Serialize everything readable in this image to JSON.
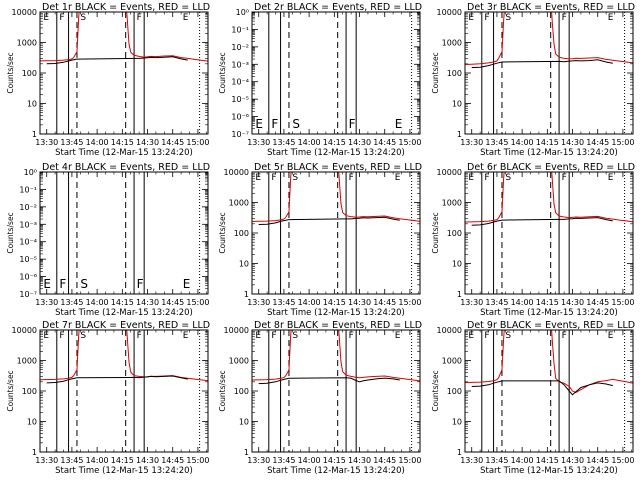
{
  "figure": {
    "xlabel": "Start Time (12-Mar-15 13:24:20)",
    "ylabel": "Counts/sec"
  },
  "chart_data": [
    {
      "type": "line",
      "title": "Det 1r BLACK = Events, RED = LLD",
      "panel": "1r",
      "empty": false,
      "ylim": [
        1,
        10000
      ],
      "yscale": "log",
      "yticks": [
        "1",
        "10",
        "100",
        "1000",
        "10000"
      ],
      "xticks": [
        "13:30",
        "13:45",
        "14:00",
        "14:15",
        "14:30",
        "14:45",
        "15:00"
      ],
      "xrange_min": [
        -4,
        96
      ],
      "solid_lines_min": [
        6,
        13,
        52,
        58
      ],
      "dashed_lines_min": [
        18,
        47
      ],
      "dotted_lines_min": [
        91
      ],
      "markers": [
        "E",
        "F",
        "S",
        "F",
        "E"
      ],
      "series": [
        {
          "name": "RED",
          "x": [
            -4,
            0,
            5,
            10,
            13,
            15,
            16,
            18,
            19,
            20,
            47,
            48,
            49,
            50,
            52,
            55,
            58,
            60,
            62,
            65,
            70,
            75,
            80,
            84,
            88,
            92,
            96
          ],
          "y": [
            250,
            252,
            255,
            265,
            275,
            290,
            320,
            500,
            6000,
            30000,
            30000,
            5000,
            900,
            480,
            380,
            350,
            330,
            340,
            350,
            345,
            360,
            370,
            320,
            300,
            280,
            260,
            245
          ]
        },
        {
          "name": "BLACK",
          "x": [
            0,
            5,
            10,
            13,
            15,
            18,
            52,
            55,
            58,
            60,
            62,
            65,
            70,
            75,
            80,
            84
          ],
          "y": [
            200,
            205,
            225,
            250,
            265,
            285,
            300,
            300,
            310,
            315,
            325,
            320,
            330,
            340,
            290,
            265
          ]
        }
      ]
    },
    {
      "type": "line",
      "title": "Det 2r BLACK = Events, RED = LLD",
      "panel": "2r",
      "empty": true,
      "ylim": [
        1e-07,
        1
      ],
      "yscale": "log",
      "yticks": [
        "10⁻⁷",
        "10⁻⁶",
        "10⁻⁵",
        "10⁻⁴",
        "10⁻³",
        "10⁻²",
        "10⁻¹",
        "10⁰"
      ],
      "xticks": [
        "13:30",
        "13:45",
        "14:00",
        "14:15",
        "14:30",
        "14:45",
        "15:00"
      ],
      "xrange_min": [
        -4,
        96
      ],
      "solid_lines_min": [
        6,
        13,
        52,
        58
      ],
      "dashed_lines_min": [
        18,
        47
      ],
      "dotted_lines_min": [
        91
      ],
      "markers": [
        "E",
        "F",
        "S",
        "F",
        "E"
      ],
      "series": []
    },
    {
      "type": "line",
      "title": "Det 3r BLACK = Events, RED = LLD",
      "panel": "3r",
      "empty": false,
      "ylim": [
        1,
        10000
      ],
      "yscale": "log",
      "yticks": [
        "1",
        "10",
        "100",
        "1000",
        "10000"
      ],
      "xticks": [
        "13:30",
        "13:45",
        "14:00",
        "14:15",
        "14:30",
        "14:45",
        "15:00"
      ],
      "xrange_min": [
        -4,
        96
      ],
      "solid_lines_min": [
        6,
        13,
        52,
        58
      ],
      "dashed_lines_min": [
        18,
        47
      ],
      "dotted_lines_min": [
        91
      ],
      "markers": [
        "E",
        "F",
        "S",
        "F",
        "E"
      ],
      "series": [
        {
          "name": "RED",
          "x": [
            -4,
            0,
            5,
            10,
            13,
            15,
            16,
            18,
            19,
            20,
            47,
            48,
            49,
            50,
            52,
            55,
            58,
            60,
            62,
            65,
            70,
            75,
            80,
            84,
            88,
            92,
            96
          ],
          "y": [
            190,
            195,
            200,
            215,
            230,
            250,
            300,
            500,
            5000,
            30000,
            30000,
            4000,
            900,
            420,
            330,
            300,
            290,
            295,
            305,
            300,
            310,
            320,
            280,
            260,
            245,
            230,
            215
          ]
        },
        {
          "name": "BLACK",
          "x": [
            0,
            5,
            10,
            13,
            15,
            18,
            52,
            55,
            58,
            60,
            62,
            65,
            70,
            75,
            80,
            84
          ],
          "y": [
            150,
            155,
            175,
            195,
            210,
            230,
            240,
            235,
            245,
            250,
            255,
            250,
            255,
            270,
            230,
            210
          ]
        }
      ]
    },
    {
      "type": "line",
      "title": "Det 4r BLACK = Events, RED = LLD",
      "panel": "4r",
      "empty": true,
      "ylim": [
        1e-07,
        1
      ],
      "yscale": "log",
      "yticks": [
        "10⁻⁷",
        "10⁻⁶",
        "10⁻⁵",
        "10⁻⁴",
        "10⁻³",
        "10⁻²",
        "10⁻¹",
        "10⁰"
      ],
      "xticks": [
        "13:30",
        "13:45",
        "14:00",
        "14:15",
        "14:30",
        "14:45",
        "15:00"
      ],
      "xrange_min": [
        -4,
        96
      ],
      "solid_lines_min": [
        6,
        13,
        52,
        58
      ],
      "dashed_lines_min": [
        18,
        47
      ],
      "dotted_lines_min": [
        91
      ],
      "markers": [
        "E",
        "F",
        "S",
        "F",
        "E"
      ],
      "series": []
    },
    {
      "type": "line",
      "title": "Det 5r BLACK = Events, RED = LLD",
      "panel": "5r",
      "empty": false,
      "ylim": [
        1,
        10000
      ],
      "yscale": "log",
      "yticks": [
        "1",
        "10",
        "100",
        "1000",
        "10000"
      ],
      "xticks": [
        "13:30",
        "13:45",
        "14:00",
        "14:15",
        "14:30",
        "14:45",
        "15:00"
      ],
      "xrange_min": [
        -4,
        96
      ],
      "solid_lines_min": [
        6,
        13,
        52,
        58
      ],
      "dashed_lines_min": [
        18,
        47
      ],
      "dotted_lines_min": [
        91
      ],
      "markers": [
        "E",
        "F",
        "S",
        "F",
        "E"
      ],
      "series": [
        {
          "name": "RED",
          "x": [
            -4,
            0,
            5,
            10,
            13,
            15,
            16,
            18,
            19,
            20,
            47,
            48,
            49,
            50,
            52,
            55,
            58,
            60,
            62,
            65,
            70,
            75,
            80,
            84,
            88,
            92,
            96
          ],
          "y": [
            240,
            242,
            246,
            255,
            268,
            285,
            320,
            500,
            6000,
            30000,
            30000,
            5000,
            900,
            470,
            370,
            345,
            330,
            335,
            345,
            340,
            350,
            360,
            315,
            295,
            275,
            258,
            240
          ]
        },
        {
          "name": "BLACK",
          "x": [
            0,
            5,
            10,
            13,
            15,
            18,
            52,
            55,
            58,
            60,
            62,
            65,
            70,
            75,
            80,
            84
          ],
          "y": [
            190,
            195,
            215,
            240,
            255,
            275,
            290,
            290,
            300,
            305,
            315,
            310,
            320,
            330,
            285,
            260
          ]
        }
      ]
    },
    {
      "type": "line",
      "title": "Det 6r BLACK = Events, RED = LLD",
      "panel": "6r",
      "empty": false,
      "ylim": [
        1,
        10000
      ],
      "yscale": "log",
      "yticks": [
        "1",
        "10",
        "100",
        "1000",
        "10000"
      ],
      "xticks": [
        "13:30",
        "13:45",
        "14:00",
        "14:15",
        "14:30",
        "14:45",
        "15:00"
      ],
      "xrange_min": [
        -4,
        96
      ],
      "solid_lines_min": [
        6,
        13,
        52,
        58
      ],
      "dashed_lines_min": [
        18,
        47
      ],
      "dotted_lines_min": [
        91
      ],
      "markers": [
        "E",
        "F",
        "S",
        "F",
        "E"
      ],
      "series": [
        {
          "name": "RED",
          "x": [
            -4,
            0,
            5,
            10,
            13,
            15,
            16,
            18,
            19,
            20,
            47,
            48,
            49,
            50,
            52,
            55,
            58,
            60,
            62,
            65,
            70,
            75,
            80,
            84,
            88,
            92,
            96
          ],
          "y": [
            230,
            232,
            236,
            245,
            258,
            275,
            310,
            500,
            6000,
            30000,
            30000,
            5000,
            900,
            460,
            360,
            335,
            320,
            325,
            335,
            330,
            340,
            350,
            305,
            285,
            265,
            250,
            232
          ]
        },
        {
          "name": "BLACK",
          "x": [
            0,
            5,
            10,
            13,
            15,
            18,
            52,
            55,
            58,
            60,
            62,
            65,
            70,
            75,
            80,
            84
          ],
          "y": [
            180,
            185,
            205,
            230,
            245,
            265,
            280,
            280,
            290,
            295,
            305,
            300,
            310,
            320,
            275,
            250
          ]
        }
      ]
    },
    {
      "type": "line",
      "title": "Det 7r BLACK = Events, RED = LLD",
      "panel": "7r",
      "empty": false,
      "ylim": [
        1,
        10000
      ],
      "yscale": "log",
      "yticks": [
        "1",
        "10",
        "100",
        "1000",
        "10000"
      ],
      "xticks": [
        "13:30",
        "13:45",
        "14:00",
        "14:15",
        "14:30",
        "14:45",
        "15:00"
      ],
      "xrange_min": [
        -4,
        96
      ],
      "solid_lines_min": [
        6,
        13,
        52,
        58
      ],
      "dashed_lines_min": [
        18,
        47
      ],
      "dotted_lines_min": [
        91
      ],
      "markers": [
        "E",
        "F",
        "S",
        "F",
        "E"
      ],
      "series": [
        {
          "name": "RED",
          "x": [
            -4,
            0,
            5,
            10,
            13,
            15,
            16,
            18,
            19,
            20,
            47,
            48,
            49,
            50,
            52,
            55,
            58,
            60,
            62,
            65,
            70,
            75,
            80,
            84,
            88,
            92,
            96
          ],
          "y": [
            235,
            237,
            240,
            250,
            262,
            280,
            315,
            500,
            6000,
            30000,
            30000,
            5000,
            900,
            420,
            320,
            300,
            290,
            295,
            305,
            300,
            310,
            320,
            280,
            262,
            245,
            232,
            218
          ]
        },
        {
          "name": "BLACK",
          "x": [
            0,
            5,
            10,
            13,
            15,
            18,
            52,
            55,
            58,
            60,
            62,
            65,
            70,
            75,
            80,
            84
          ],
          "y": [
            185,
            190,
            210,
            235,
            250,
            270,
            280,
            275,
            285,
            290,
            300,
            295,
            300,
            310,
            270,
            245
          ]
        }
      ]
    },
    {
      "type": "line",
      "title": "Det 8r BLACK = Events, RED = LLD",
      "panel": "8r",
      "empty": false,
      "ylim": [
        1,
        10000
      ],
      "yscale": "log",
      "yticks": [
        "1",
        "10",
        "100",
        "1000",
        "10000"
      ],
      "xticks": [
        "13:30",
        "13:45",
        "14:00",
        "14:15",
        "14:30",
        "14:45",
        "15:00"
      ],
      "xrange_min": [
        -4,
        96
      ],
      "solid_lines_min": [
        6,
        13,
        52,
        58
      ],
      "dashed_lines_min": [
        18,
        47
      ],
      "dotted_lines_min": [
        91
      ],
      "markers": [
        "E",
        "F",
        "S",
        "F",
        "E"
      ],
      "series": [
        {
          "name": "RED",
          "x": [
            -4,
            0,
            5,
            10,
            13,
            15,
            16,
            18,
            19,
            20,
            47,
            48,
            49,
            50,
            52,
            55,
            58,
            60,
            62,
            65,
            70,
            75,
            80,
            84,
            88,
            92,
            96
          ],
          "y": [
            230,
            232,
            236,
            245,
            258,
            275,
            310,
            500,
            6000,
            30000,
            30000,
            5000,
            900,
            430,
            330,
            300,
            280,
            270,
            280,
            290,
            300,
            310,
            280,
            262,
            245,
            230,
            215
          ]
        },
        {
          "name": "BLACK",
          "x": [
            0,
            5,
            10,
            13,
            15,
            18,
            52,
            55,
            58,
            60,
            62,
            65,
            70,
            75,
            80,
            84
          ],
          "y": [
            175,
            180,
            200,
            225,
            240,
            260,
            270,
            260,
            220,
            200,
            215,
            230,
            250,
            265,
            250,
            230
          ]
        }
      ]
    },
    {
      "type": "line",
      "title": "Det 9r BLACK = Events, RED = LLD",
      "panel": "9r",
      "empty": false,
      "ylim": [
        1,
        10000
      ],
      "yscale": "log",
      "yticks": [
        "1",
        "10",
        "100",
        "1000",
        "10000"
      ],
      "xticks": [
        "13:30",
        "13:45",
        "14:00",
        "14:15",
        "14:30",
        "14:45",
        "15:00"
      ],
      "xrange_min": [
        -4,
        96
      ],
      "solid_lines_min": [
        6,
        13,
        52,
        58
      ],
      "dashed_lines_min": [
        18,
        47
      ],
      "dotted_lines_min": [
        91
      ],
      "markers": [
        "E",
        "F",
        "S",
        "F",
        "E"
      ],
      "series": [
        {
          "name": "RED",
          "x": [
            -4,
            0,
            5,
            10,
            13,
            15,
            16,
            18,
            19,
            20,
            47,
            48,
            49,
            50,
            52,
            55,
            58,
            60,
            62,
            65,
            70,
            75,
            80,
            84,
            88,
            92,
            96
          ],
          "y": [
            190,
            192,
            196,
            205,
            218,
            235,
            270,
            500,
            5000,
            30000,
            30000,
            4000,
            800,
            260,
            200,
            180,
            140,
            100,
            90,
            110,
            160,
            200,
            220,
            240,
            220,
            200,
            180
          ]
        },
        {
          "name": "BLACK",
          "x": [
            0,
            5,
            10,
            13,
            15,
            18,
            52,
            55,
            58,
            60,
            62,
            65,
            70,
            75,
            80,
            84
          ],
          "y": [
            140,
            145,
            160,
            180,
            195,
            215,
            215,
            160,
            100,
            75,
            95,
            130,
            160,
            185,
            170,
            150
          ]
        }
      ]
    }
  ]
}
